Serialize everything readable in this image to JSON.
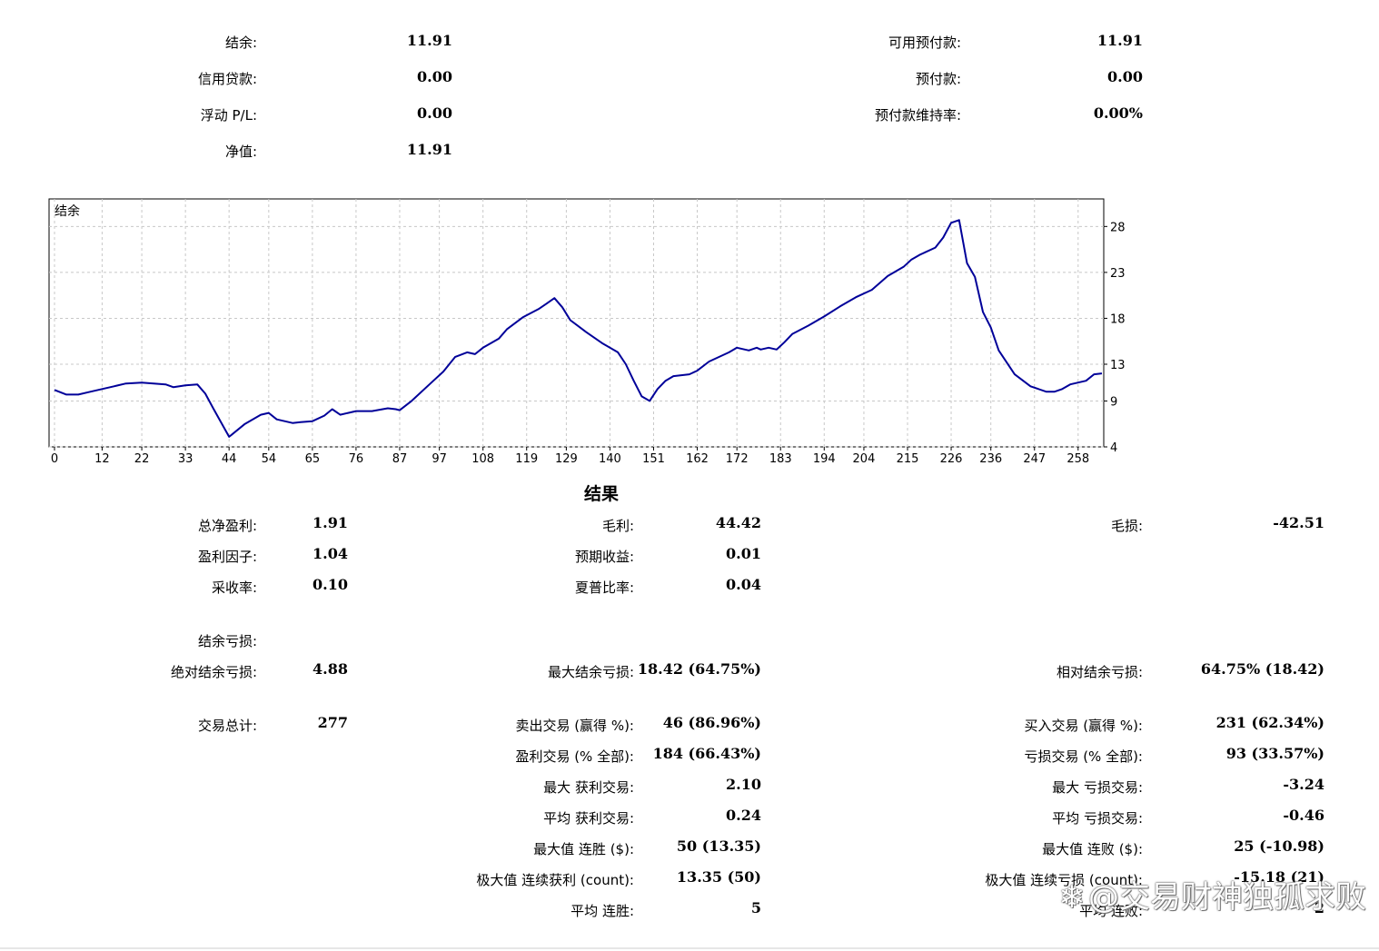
{
  "account": {
    "balance_label": "结余:",
    "balance_value": "11.91",
    "credit_label": "信用贷款:",
    "credit_value": "0.00",
    "floating_label": "浮动 P/L:",
    "floating_value": "0.00",
    "equity_label": "净值:",
    "equity_value": "11.91",
    "free_margin_label": "可用预付款:",
    "free_margin_value": "11.91",
    "margin_label": "预付款:",
    "margin_value": "0.00",
    "margin_level_label": "预付款维持率:",
    "margin_level_value": "0.00%"
  },
  "chart_data": {
    "type": "line",
    "title": "结余",
    "series": [
      {
        "name": "结余",
        "color": "#000099",
        "x": [
          0,
          3,
          6,
          9,
          12,
          15,
          18,
          22,
          25,
          28,
          30,
          33,
          36,
          38,
          40,
          44,
          48,
          52,
          54,
          56,
          58,
          60,
          62,
          65,
          68,
          70,
          72,
          74,
          76,
          78,
          80,
          84,
          86,
          87,
          90,
          95,
          98,
          101,
          104,
          106,
          108,
          112,
          114,
          118,
          122,
          124,
          126,
          128,
          130,
          134,
          138,
          142,
          144,
          146,
          148,
          150,
          152,
          154,
          156,
          160,
          162,
          165,
          170,
          172,
          175,
          177,
          178,
          180,
          182,
          184,
          186,
          190,
          194,
          198,
          202,
          206,
          210,
          214,
          216,
          218,
          222,
          224,
          226,
          228,
          230,
          232,
          234,
          236,
          238,
          242,
          246,
          250,
          252,
          254,
          256,
          258,
          260,
          262,
          264
        ],
        "y": [
          10.2,
          9.7,
          9.7,
          10.0,
          10.3,
          10.6,
          10.9,
          11.0,
          10.9,
          10.8,
          10.5,
          10.7,
          10.8,
          9.8,
          8.2,
          5.1,
          6.5,
          7.5,
          7.7,
          7.0,
          6.8,
          6.6,
          6.7,
          6.8,
          7.4,
          8.1,
          7.5,
          7.7,
          7.9,
          7.9,
          7.9,
          8.2,
          8.1,
          8.0,
          9.0,
          11.0,
          12.2,
          13.8,
          14.3,
          14.1,
          14.8,
          15.8,
          16.8,
          18.1,
          19.0,
          19.6,
          20.2,
          19.2,
          17.8,
          16.5,
          15.3,
          14.3,
          13.0,
          11.2,
          9.5,
          9.0,
          10.3,
          11.2,
          11.7,
          11.9,
          12.3,
          13.3,
          14.3,
          14.8,
          14.5,
          14.8,
          14.6,
          14.8,
          14.6,
          15.4,
          16.3,
          17.2,
          18.2,
          19.3,
          20.3,
          21.1,
          22.6,
          23.6,
          24.4,
          24.9,
          25.7,
          26.8,
          28.4,
          28.7,
          24.0,
          22.5,
          18.7,
          17.0,
          14.5,
          11.9,
          10.6,
          10.0,
          10.0,
          10.3,
          10.8,
          11.0,
          11.2,
          11.9,
          12.0
        ]
      }
    ],
    "xticks": [
      0,
      12,
      22,
      33,
      44,
      54,
      65,
      76,
      87,
      97,
      108,
      119,
      129,
      140,
      151,
      162,
      172,
      183,
      194,
      204,
      215,
      226,
      236,
      247,
      258
    ],
    "yticks": [
      4,
      9,
      13,
      18,
      23,
      28
    ],
    "xlim": [
      0,
      264
    ],
    "ylim": [
      4,
      31
    ],
    "grid": true,
    "xlabel": "",
    "ylabel": ""
  },
  "results": {
    "title": "结果",
    "net_profit_label": "总净盈利:",
    "net_profit_value": "1.91",
    "gross_profit_label": "毛利:",
    "gross_profit_value": "44.42",
    "gross_loss_label": "毛损:",
    "gross_loss_value": "-42.51",
    "profit_factor_label": "盈利因子:",
    "profit_factor_value": "1.04",
    "expected_payoff_label": "预期收益:",
    "expected_payoff_value": "0.01",
    "recovery_label": "采收率:",
    "recovery_value": "0.10",
    "sharpe_label": "夏普比率:",
    "sharpe_value": "0.04",
    "balance_dd_label": "结余亏损:",
    "abs_dd_label": "绝对结余亏损:",
    "abs_dd_value": "4.88",
    "max_dd_label": "最大结余亏损:",
    "max_dd_value": "18.42 (64.75%)",
    "rel_dd_label": "相对结余亏损:",
    "rel_dd_value": "64.75% (18.42)",
    "total_trades_label": "交易总计:",
    "total_trades_value": "277",
    "short_label": "卖出交易 (赢得 %):",
    "short_value": "46 (86.96%)",
    "long_label": "买入交易 (赢得 %):",
    "long_value": "231 (62.34%)",
    "profit_trades_label": "盈利交易 (% 全部):",
    "profit_trades_value": "184 (66.43%)",
    "loss_trades_label": "亏损交易 (% 全部):",
    "loss_trades_value": "93 (33.57%)",
    "largest_profit_label": "最大 获利交易:",
    "largest_profit_value": "2.10",
    "largest_loss_label": "最大 亏损交易:",
    "largest_loss_value": "-3.24",
    "avg_profit_label": "平均 获利交易:",
    "avg_profit_value": "0.24",
    "avg_loss_label": "平均 亏损交易:",
    "avg_loss_value": "-0.46",
    "max_consec_wins_label": "最大值 连胜 ($):",
    "max_consec_wins_value": "50 (13.35)",
    "max_consec_losses_label": "最大值 连败 ($):",
    "max_consec_losses_value": "25 (-10.98)",
    "max_consec_profit_label": "极大值 连续获利 (count):",
    "max_consec_profit_value": "13.35 (50)",
    "max_consec_loss_label": "极大值 连续亏损 (count):",
    "max_consec_loss_value": "-15.18 (21)",
    "avg_consec_wins_label": "平均 连胜:",
    "avg_consec_wins_value": "5",
    "avg_consec_losses_label": "平均 连败:",
    "avg_consec_losses_value": "2"
  },
  "watermark": {
    "text": "@交易财神独孤求败",
    "icon": "snowball-icon"
  }
}
